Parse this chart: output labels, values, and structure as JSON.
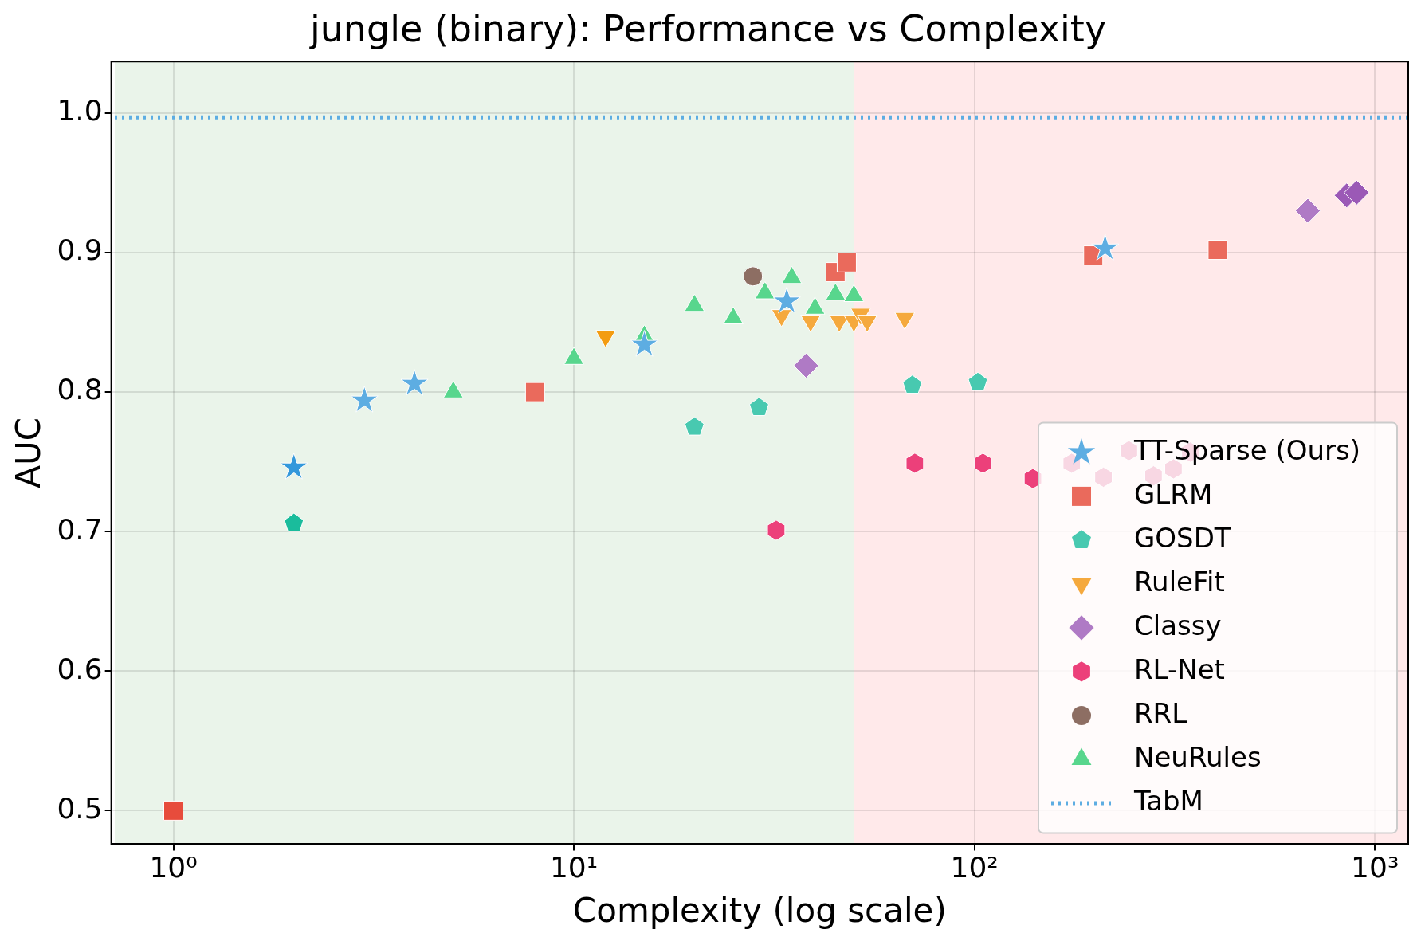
{
  "chart_data": {
    "type": "scatter",
    "title": "jungle (binary): Performance vs Complexity",
    "xlabel": "Complexity (log scale)",
    "ylabel": "AUC",
    "log": "x",
    "xlim": [
      0.714,
      1211
    ],
    "xticks": [
      {
        "value": 1,
        "label": "10⁰"
      },
      {
        "value": 10,
        "label": "10¹"
      },
      {
        "value": 100,
        "label": "10²"
      },
      {
        "value": 1000,
        "label": "10³"
      }
    ],
    "ylim": [
      0.476,
      1.037
    ],
    "yticks": [
      0.5,
      0.6,
      0.7,
      0.8,
      0.9,
      {
        "value": 1,
        "label": "1.0"
      }
    ],
    "grid": true,
    "legend": "bottom right",
    "bands": [
      {
        "axis": "x",
        "from": 0.714,
        "to": 50,
        "color": "#eaf4ea"
      },
      {
        "axis": "x",
        "from": 50,
        "to": 1211,
        "color": "#ffe9ea"
      }
    ],
    "series": [
      {
        "name": "TT-Sparse (Ours)",
        "marker": "star",
        "color": "#5dade2",
        "colors": [
          "#3498db",
          "#5dade2",
          "#5dade2",
          "#5dade2",
          "#5dade2",
          "#5dade2"
        ],
        "x": [
          2,
          3,
          4,
          15,
          34,
          212
        ],
        "values": [
          0.746,
          0.794,
          0.806,
          0.834,
          0.865,
          0.903
        ]
      },
      {
        "name": "GLRM",
        "marker": "square",
        "color": "#ea6a5c",
        "colors": [
          "#e74c3c",
          "#ea6a5c",
          "#ea6a5c",
          "#ea6a5c",
          "#ea6a5c",
          "#ea6a5c"
        ],
        "x": [
          1,
          8,
          45,
          48,
          198,
          405
        ],
        "values": [
          0.5,
          0.8,
          0.886,
          0.893,
          0.898,
          0.902
        ]
      },
      {
        "name": "GOSDT",
        "color": "#48c9b0",
        "colors": [
          "#1abc9c",
          "#48c9b0",
          "#48c9b0",
          "#48c9b0",
          "#48c9b0"
        ],
        "x": [
          2,
          20,
          29,
          70,
          102
        ],
        "values": [
          0.706,
          0.775,
          0.789,
          0.805,
          0.807
        ]
      },
      {
        "name": "RuleFit",
        "marker": "triangle_down",
        "color": "#f5a93d",
        "colors": [
          "#f39c12",
          "#f5a93d",
          "#f5a93d",
          "#f5a93d",
          "#f5a93d",
          "#f5a93d",
          "#f5a93d",
          "#f5a93d"
        ],
        "x": [
          12,
          33,
          39,
          46,
          50,
          52,
          54,
          67
        ],
        "values": [
          0.84,
          0.855,
          0.851,
          0.851,
          0.851,
          0.856,
          0.851,
          0.853
        ]
      },
      {
        "name": "Classy",
        "marker": "diamond",
        "color": "#af7ac5",
        "colors": [
          "#af7ac5",
          "#af7ac5",
          "#9b59b6",
          "#9b59b6"
        ],
        "x": [
          38,
          680,
          850,
          900
        ],
        "values": [
          0.819,
          0.93,
          0.941,
          0.943
        ]
      },
      {
        "name": "RL-Net",
        "color": "#ec407a",
        "x": [
          32,
          71,
          105,
          140
        ],
        "values": [
          0.701,
          0.749,
          0.749,
          0.738
        ]
      },
      {
        "name": "RRL",
        "marker": "circle",
        "color": "#8d6e63",
        "x": [
          28
        ],
        "values": [
          0.883
        ]
      },
      {
        "name": "NeuRules",
        "marker": "triangle",
        "color": "#58d68d",
        "x": [
          5,
          10,
          15,
          20,
          25,
          30,
          35,
          40,
          45,
          50
        ],
        "values": [
          0.8,
          0.824,
          0.84,
          0.862,
          0.853,
          0.871,
          0.882,
          0.86,
          0.87,
          0.869
        ]
      },
      {
        "name": "TabM",
        "type": "line",
        "line_style": "dotted",
        "color": "#5dade2",
        "x": [
          0.714,
          1211
        ],
        "values": [
          0.997,
          0.997
        ]
      },
      {
        "color": "#f8d7e3",
        "x": [
          175,
          210,
          243,
          280,
          314,
          346
        ],
        "values": [
          0.749,
          0.739,
          0.758,
          0.74,
          0.745,
          0.757
        ]
      }
    ]
  }
}
